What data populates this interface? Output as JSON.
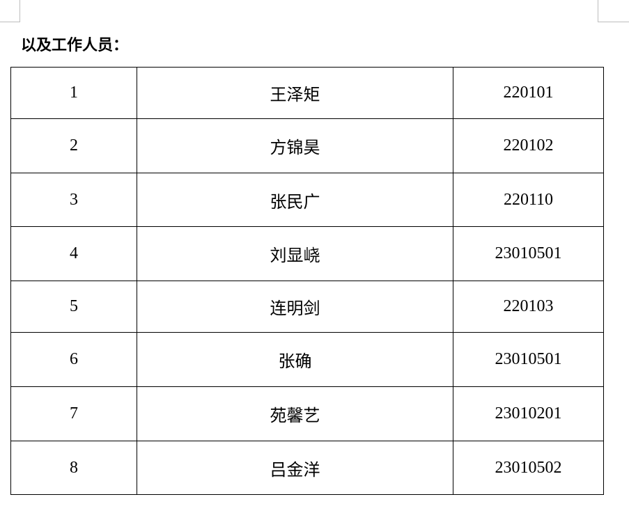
{
  "heading": "以及工作人员：",
  "table": {
    "rows": [
      [
        "1",
        "王泽矩",
        "220101"
      ],
      [
        "2",
        "方锦昊",
        "220102"
      ],
      [
        "3",
        "张民广",
        "220110"
      ],
      [
        "4",
        "刘显峣",
        "23010501"
      ],
      [
        "5",
        "连明剑",
        "220103"
      ],
      [
        "6",
        "张确",
        "23010501"
      ],
      [
        "7",
        "苑馨艺",
        "23010201"
      ],
      [
        "8",
        "吕金洋",
        "23010502"
      ]
    ]
  }
}
